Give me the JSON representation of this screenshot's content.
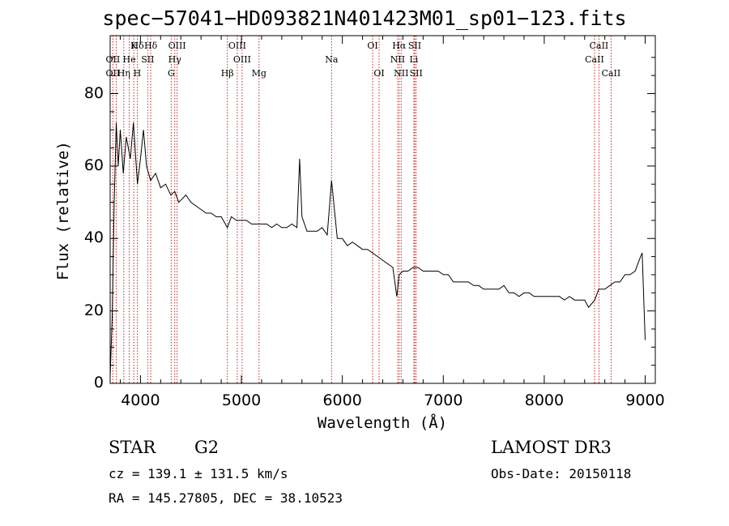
{
  "chart_data": {
    "type": "line",
    "title": "spec−57041−HD093821N401423M01_sp01−123.fits",
    "xlabel": "Wavelength (Å)",
    "ylabel": "Flux (relative)",
    "xlim": [
      3700,
      9100
    ],
    "ylim": [
      0,
      96
    ],
    "x_ticks": [
      "4000",
      "5000",
      "6000",
      "7000",
      "8000",
      "9000"
    ],
    "y_ticks": [
      "0",
      "20",
      "40",
      "60",
      "80"
    ],
    "series": [
      {
        "x": [
          3700,
          3720,
          3740,
          3760,
          3780,
          3800,
          3830,
          3860,
          3900,
          3930,
          3970,
          4000,
          4030,
          4060,
          4100,
          4150,
          4200,
          4250,
          4300,
          4340,
          4380,
          4450,
          4500,
          4550,
          4600,
          4650,
          4700,
          4750,
          4800,
          4861,
          4900,
          4950,
          5000,
          5050,
          5100,
          5150,
          5200,
          5250,
          5300,
          5350,
          5400,
          5450,
          5500,
          5550,
          5577,
          5600,
          5650,
          5700,
          5750,
          5800,
          5850,
          5893,
          5950,
          6000,
          6050,
          6100,
          6150,
          6200,
          6250,
          6300,
          6350,
          6400,
          6450,
          6500,
          6540,
          6563,
          6600,
          6650,
          6700,
          6750,
          6800,
          6850,
          6900,
          6950,
          7000,
          7050,
          7100,
          7150,
          7200,
          7250,
          7300,
          7350,
          7400,
          7450,
          7500,
          7550,
          7600,
          7650,
          7700,
          7750,
          7800,
          7850,
          7900,
          7950,
          8000,
          8050,
          8100,
          8150,
          8200,
          8250,
          8300,
          8350,
          8400,
          8440,
          8500,
          8540,
          8600,
          8650,
          8700,
          8750,
          8800,
          8850,
          8900,
          8940,
          8970,
          9000
        ],
        "y": [
          2,
          18,
          50,
          72,
          60,
          70,
          58,
          68,
          62,
          72,
          55,
          62,
          70,
          60,
          56,
          58,
          54,
          55,
          52,
          53,
          50,
          52,
          50,
          49,
          48,
          47,
          47,
          46,
          46,
          43,
          46,
          45,
          45,
          45,
          44,
          44,
          44,
          44,
          43,
          44,
          43,
          43,
          44,
          43,
          62,
          46,
          42,
          42,
          42,
          43,
          41,
          56,
          40,
          40,
          38,
          39,
          38,
          37,
          37,
          36,
          35,
          34,
          33,
          32,
          24,
          30,
          31,
          31,
          32,
          32,
          31,
          31,
          31,
          31,
          30,
          30,
          28,
          28,
          28,
          28,
          27,
          27,
          26,
          26,
          26,
          26,
          27,
          25,
          25,
          24,
          25,
          25,
          24,
          24,
          24,
          24,
          24,
          24,
          23,
          24,
          23,
          23,
          23,
          21,
          23,
          26,
          26,
          27,
          28,
          28,
          30,
          30,
          31,
          34,
          36,
          12
        ]
      }
    ],
    "line_markers": [
      {
        "name": "Hδ",
        "wl": 3970,
        "row": 0
      },
      {
        "name": "K",
        "wl": 3934,
        "row": 0
      },
      {
        "name": "Hδ",
        "wl": 4102,
        "row": 0
      },
      {
        "name": "OIII",
        "wl": 4363,
        "row": 0
      },
      {
        "name": "OIII",
        "wl": 4959,
        "row": 0
      },
      {
        "name": "OI",
        "wl": 6300,
        "row": 0
      },
      {
        "name": "Hα",
        "wl": 6563,
        "row": 0
      },
      {
        "name": "SII",
        "wl": 6717,
        "row": 0
      },
      {
        "name": "CaII",
        "wl": 8542,
        "row": 0
      },
      {
        "name": "OII",
        "wl": 3727,
        "row": 1
      },
      {
        "name": "He",
        "wl": 3889,
        "row": 1
      },
      {
        "name": "SII",
        "wl": 4072,
        "row": 1
      },
      {
        "name": "Hγ",
        "wl": 4340,
        "row": 1
      },
      {
        "name": "OIII",
        "wl": 5007,
        "row": 1
      },
      {
        "name": "Na",
        "wl": 5893,
        "row": 1
      },
      {
        "name": "NII",
        "wl": 6548,
        "row": 1
      },
      {
        "name": "Li",
        "wl": 6708,
        "row": 1
      },
      {
        "name": "CaII",
        "wl": 8498,
        "row": 1
      },
      {
        "name": "OII",
        "wl": 3727,
        "row": 2
      },
      {
        "name": "Hη",
        "wl": 3835,
        "row": 2
      },
      {
        "name": "H",
        "wl": 3968,
        "row": 2
      },
      {
        "name": "G",
        "wl": 4305,
        "row": 2
      },
      {
        "name": "Hβ",
        "wl": 4861,
        "row": 2
      },
      {
        "name": "Mg",
        "wl": 5175,
        "row": 2
      },
      {
        "name": "OI",
        "wl": 6364,
        "row": 2
      },
      {
        "name": "NII",
        "wl": 6583,
        "row": 2
      },
      {
        "name": "SII",
        "wl": 6731,
        "row": 2
      },
      {
        "name": "CaII",
        "wl": 8662,
        "row": 2
      }
    ],
    "marker_line_wavelengths": [
      3727,
      3760,
      3835,
      3889,
      3934,
      3970,
      4072,
      4102,
      4305,
      4340,
      4363,
      4861,
      4959,
      5007,
      5175,
      5893,
      6300,
      6364,
      6548,
      6563,
      6583,
      6708,
      6717,
      6731,
      8498,
      8542,
      8662
    ],
    "colors": {
      "marker_line": "#cc2222",
      "spectrum": "#000000"
    }
  },
  "info": {
    "object_type": "STAR",
    "subclass": "G2",
    "survey": "LAMOST DR3",
    "cz": "cz = 139.1 ± 131.5 km/s",
    "obs_date": "Obs-Date: 20150118",
    "radec": "RA = 145.27805, DEC =  38.10523"
  }
}
